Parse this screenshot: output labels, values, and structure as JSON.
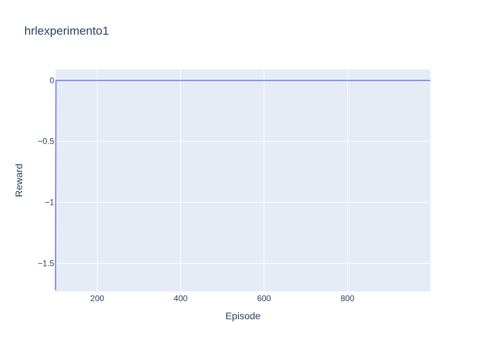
{
  "chart_data": {
    "type": "line",
    "title": "hrlexperimento1",
    "xlabel": "Episode",
    "ylabel": "Reward",
    "xlim": [
      100,
      999
    ],
    "ylim": [
      -1.73,
      0.09
    ],
    "x_ticks": [
      200,
      400,
      600,
      800
    ],
    "x_tick_labels": [
      "200",
      "400",
      "600",
      "800"
    ],
    "y_ticks": [
      0,
      -0.5,
      -1,
      -1.5
    ],
    "y_tick_labels": [
      "0",
      "−0.5",
      "−1",
      "−1.5"
    ],
    "grid": true,
    "series": [
      {
        "x": [
          100,
          101,
          102,
          200,
          300,
          400,
          500,
          600,
          700,
          800,
          900,
          999
        ],
        "values": [
          -1.72,
          0,
          0,
          0,
          0,
          0,
          0,
          0,
          0,
          0,
          0,
          0
        ]
      }
    ]
  },
  "colors": {
    "plot_bg": "#e5ecf6",
    "grid": "#ffffff",
    "line": "#636efa",
    "text": "#2a3f5f"
  }
}
